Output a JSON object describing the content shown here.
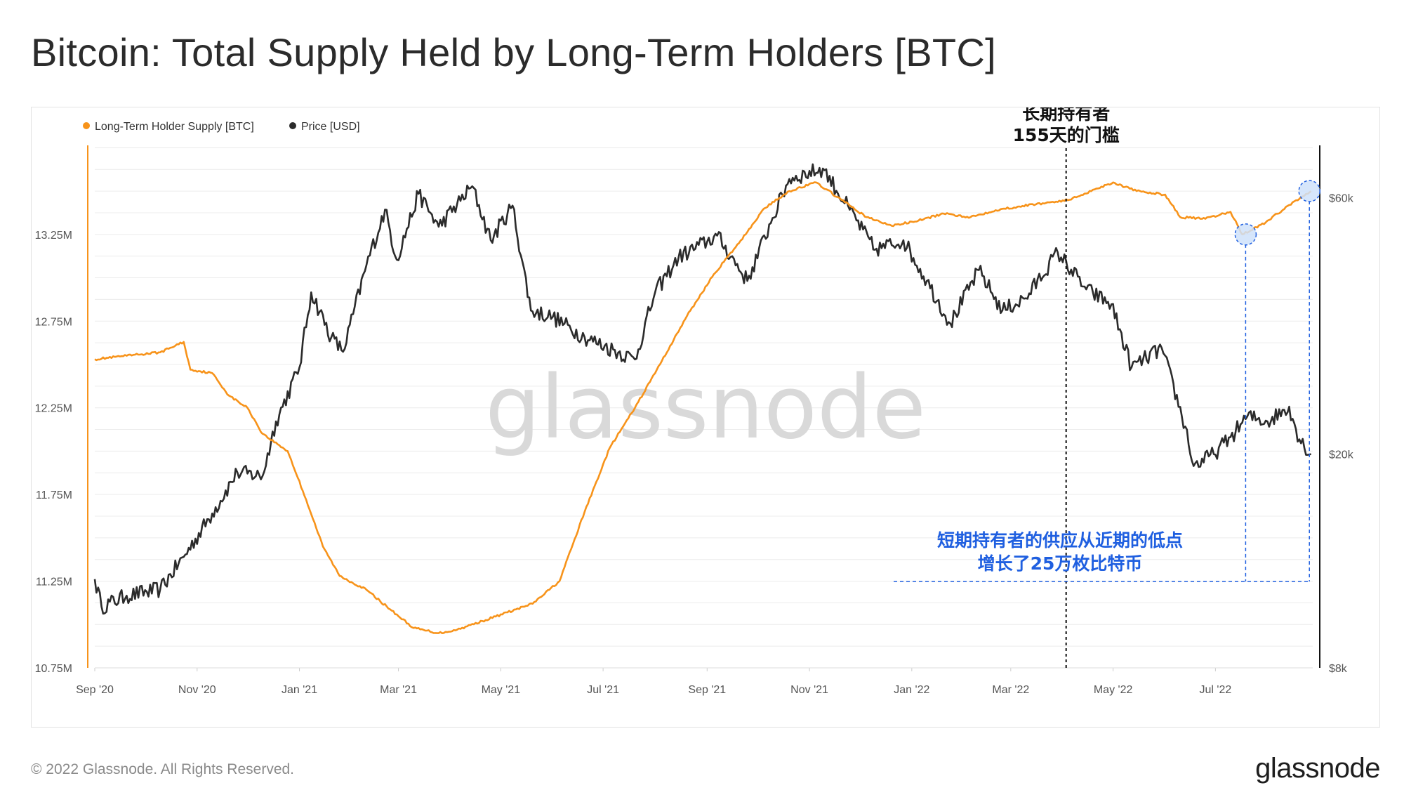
{
  "title": "Bitcoin: Total Supply Held by Long-Term Holders [BTC]",
  "footer": {
    "copyright": "© 2022 Glassnode. All Rights Reserved.",
    "logo_text": "glassnode"
  },
  "watermark": "glassnode",
  "colors": {
    "lth": "#f7931a",
    "price": "#2b2b2b",
    "annotation_blue": "#1f5fe0",
    "marker_fill": "#cfe2fa"
  },
  "chart_data": {
    "type": "line",
    "legend": [
      "Long-Term Holder Supply [BTC]",
      "Price [USD]"
    ],
    "legend_placement": "top-left",
    "grid": true,
    "x_ticks": [
      "Sep '20",
      "Nov '20",
      "Jan '21",
      "Mar '21",
      "May '21",
      "Jul '21",
      "Sep '21",
      "Nov '21",
      "Jan '22",
      "Mar '22",
      "May '22",
      "Jul '22"
    ],
    "x_tick_dates": [
      "2020-09-01",
      "2020-11-01",
      "2021-01-01",
      "2021-03-01",
      "2021-05-01",
      "2021-07-01",
      "2021-09-01",
      "2021-11-01",
      "2022-01-01",
      "2022-03-01",
      "2022-05-01",
      "2022-07-01"
    ],
    "xlim": [
      "2020-09-01",
      "2022-08-28"
    ],
    "y_left": {
      "label": "",
      "ticks": [
        "10.75M",
        "11.25M",
        "11.75M",
        "12.25M",
        "12.75M",
        "13.25M"
      ],
      "range": [
        10.75,
        13.78
      ],
      "unit": "M"
    },
    "y_right": {
      "label": "",
      "scale": "log",
      "ticks": [
        "$8k",
        "$20k",
        "$60k"
      ],
      "tick_values": [
        8000,
        20000,
        60000
      ],
      "range": [
        8000,
        76000
      ]
    },
    "series": [
      {
        "name": "Long-Term Holder Supply [BTC]",
        "axis": "left",
        "points": [
          [
            "2020-09-01",
            12.53
          ],
          [
            "2020-09-20",
            12.55
          ],
          [
            "2020-10-10",
            12.57
          ],
          [
            "2020-10-24",
            12.63
          ],
          [
            "2020-10-28",
            12.47
          ],
          [
            "2020-11-10",
            12.45
          ],
          [
            "2020-11-20",
            12.32
          ],
          [
            "2020-12-01",
            12.25
          ],
          [
            "2020-12-10",
            12.1
          ],
          [
            "2020-12-25",
            12.0
          ],
          [
            "2021-01-05",
            11.72
          ],
          [
            "2021-01-15",
            11.45
          ],
          [
            "2021-01-25",
            11.28
          ],
          [
            "2021-02-10",
            11.2
          ],
          [
            "2021-02-25",
            11.08
          ],
          [
            "2021-03-10",
            10.98
          ],
          [
            "2021-03-25",
            10.95
          ],
          [
            "2021-04-05",
            10.97
          ],
          [
            "2021-04-20",
            11.02
          ],
          [
            "2021-05-05",
            11.07
          ],
          [
            "2021-05-20",
            11.12
          ],
          [
            "2021-06-05",
            11.25
          ],
          [
            "2021-06-20",
            11.65
          ],
          [
            "2021-07-05",
            12.02
          ],
          [
            "2021-07-20",
            12.25
          ],
          [
            "2021-08-05",
            12.52
          ],
          [
            "2021-08-20",
            12.78
          ],
          [
            "2021-09-05",
            13.02
          ],
          [
            "2021-09-20",
            13.2
          ],
          [
            "2021-10-05",
            13.4
          ],
          [
            "2021-10-20",
            13.5
          ],
          [
            "2021-11-05",
            13.55
          ],
          [
            "2021-11-20",
            13.45
          ],
          [
            "2021-12-05",
            13.35
          ],
          [
            "2021-12-20",
            13.3
          ],
          [
            "2022-01-05",
            13.33
          ],
          [
            "2022-01-20",
            13.37
          ],
          [
            "2022-02-05",
            13.35
          ],
          [
            "2022-02-20",
            13.39
          ],
          [
            "2022-03-05",
            13.41
          ],
          [
            "2022-03-20",
            13.43
          ],
          [
            "2022-04-05",
            13.45
          ],
          [
            "2022-04-20",
            13.51
          ],
          [
            "2022-05-01",
            13.55
          ],
          [
            "2022-05-15",
            13.5
          ],
          [
            "2022-06-01",
            13.48
          ],
          [
            "2022-06-10",
            13.35
          ],
          [
            "2022-06-25",
            13.34
          ],
          [
            "2022-07-10",
            13.38
          ],
          [
            "2022-07-17",
            13.25
          ],
          [
            "2022-07-31",
            13.32
          ],
          [
            "2022-08-14",
            13.42
          ],
          [
            "2022-08-27",
            13.5
          ]
        ]
      },
      {
        "name": "Price [USD]",
        "axis": "right",
        "points": [
          [
            "2020-09-01",
            11700
          ],
          [
            "2020-09-05",
            10400
          ],
          [
            "2020-09-20",
            10900
          ],
          [
            "2020-10-10",
            11200
          ],
          [
            "2020-10-25",
            13000
          ],
          [
            "2020-11-10",
            15500
          ],
          [
            "2020-11-25",
            18500
          ],
          [
            "2020-12-10",
            18200
          ],
          [
            "2020-12-18",
            23000
          ],
          [
            "2021-01-01",
            29000
          ],
          [
            "2021-01-08",
            40000
          ],
          [
            "2021-01-20",
            33000
          ],
          [
            "2021-01-27",
            31000
          ],
          [
            "2021-02-10",
            45000
          ],
          [
            "2021-02-21",
            57000
          ],
          [
            "2021-02-28",
            46000
          ],
          [
            "2021-03-13",
            61000
          ],
          [
            "2021-03-25",
            53000
          ],
          [
            "2021-04-14",
            63000
          ],
          [
            "2021-04-25",
            50000
          ],
          [
            "2021-05-08",
            58000
          ],
          [
            "2021-05-19",
            37000
          ],
          [
            "2021-06-01",
            36000
          ],
          [
            "2021-06-20",
            33000
          ],
          [
            "2021-07-20",
            30000
          ],
          [
            "2021-08-01",
            40000
          ],
          [
            "2021-08-15",
            46500
          ],
          [
            "2021-09-07",
            51000
          ],
          [
            "2021-09-25",
            42000
          ],
          [
            "2021-10-10",
            55000
          ],
          [
            "2021-10-20",
            65000
          ],
          [
            "2021-11-09",
            68000
          ],
          [
            "2021-11-25",
            57000
          ],
          [
            "2021-12-10",
            48000
          ],
          [
            "2021-12-27",
            50000
          ],
          [
            "2022-01-10",
            42000
          ],
          [
            "2022-01-24",
            35000
          ],
          [
            "2022-02-10",
            44000
          ],
          [
            "2022-02-24",
            37000
          ],
          [
            "2022-03-10",
            39000
          ],
          [
            "2022-03-29",
            47500
          ],
          [
            "2022-04-15",
            40500
          ],
          [
            "2022-04-30",
            38000
          ],
          [
            "2022-05-12",
            29000
          ],
          [
            "2022-05-30",
            31500
          ],
          [
            "2022-06-13",
            22500
          ],
          [
            "2022-06-18",
            19000
          ],
          [
            "2022-06-30",
            20000
          ],
          [
            "2022-07-10",
            21500
          ],
          [
            "2022-07-20",
            23500
          ],
          [
            "2022-08-01",
            23000
          ],
          [
            "2022-08-14",
            24500
          ],
          [
            "2022-08-20",
            21300
          ],
          [
            "2022-08-27",
            20000
          ]
        ]
      }
    ],
    "annotations": {
      "threshold_line": {
        "date": "2022-04-03",
        "text_lines": [
          "长期持有者",
          "155天的门槛"
        ]
      },
      "growth_note": {
        "text_lines": [
          "短期持有者的供应从近期的低点",
          "增长了25万枚比特币"
        ],
        "low_point": [
          "2022-07-19",
          13.25
        ],
        "end_point": [
          "2022-08-26",
          13.5
        ]
      }
    }
  }
}
